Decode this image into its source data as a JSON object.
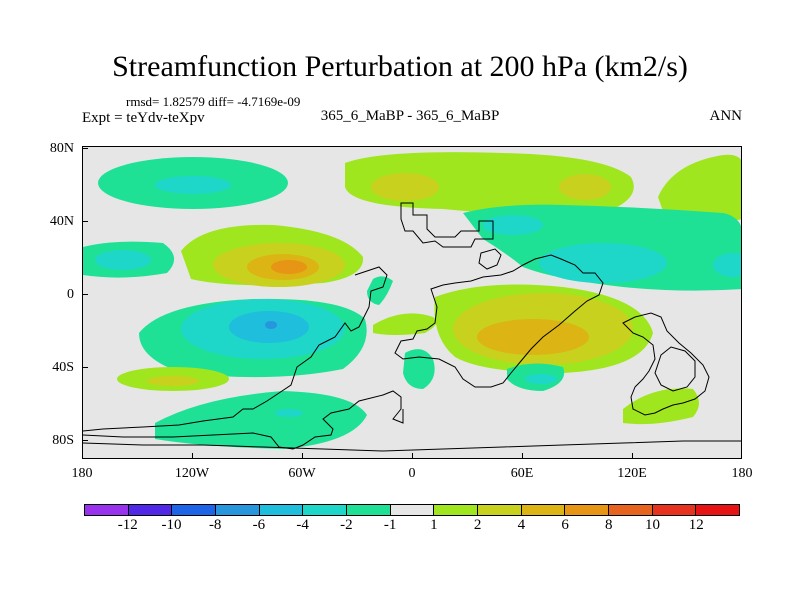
{
  "header": {
    "title": "Streamfunction Perturbation at 200 hPa (km2/s)",
    "stats": "rmsd= 1.82579 diff= -4.7169e-09",
    "expt": "Expt = teYdv-teXpv",
    "case": "365_6_MaBP - 365_6_MaBP",
    "season": "ANN"
  },
  "axes": {
    "y_labels": [
      "80N",
      "40N",
      "0",
      "40S",
      "80S"
    ],
    "x_labels": [
      "180",
      "120W",
      "60W",
      "0",
      "60E",
      "120E",
      "180"
    ]
  },
  "colorbar": {
    "labels": [
      "-12",
      "-10",
      "-8",
      "-6",
      "-4",
      "-2",
      "-1",
      "1",
      "2",
      "4",
      "6",
      "8",
      "10",
      "12"
    ],
    "colors": [
      "#9932ec",
      "#5028e6",
      "#1e64e6",
      "#2896dc",
      "#1ebedc",
      "#1ed7c8",
      "#1ee196",
      "#e6e6e6",
      "#a0e61e",
      "#c8d21e",
      "#dcb414",
      "#e69614",
      "#e6641e",
      "#e6321e",
      "#e61414"
    ]
  }
}
